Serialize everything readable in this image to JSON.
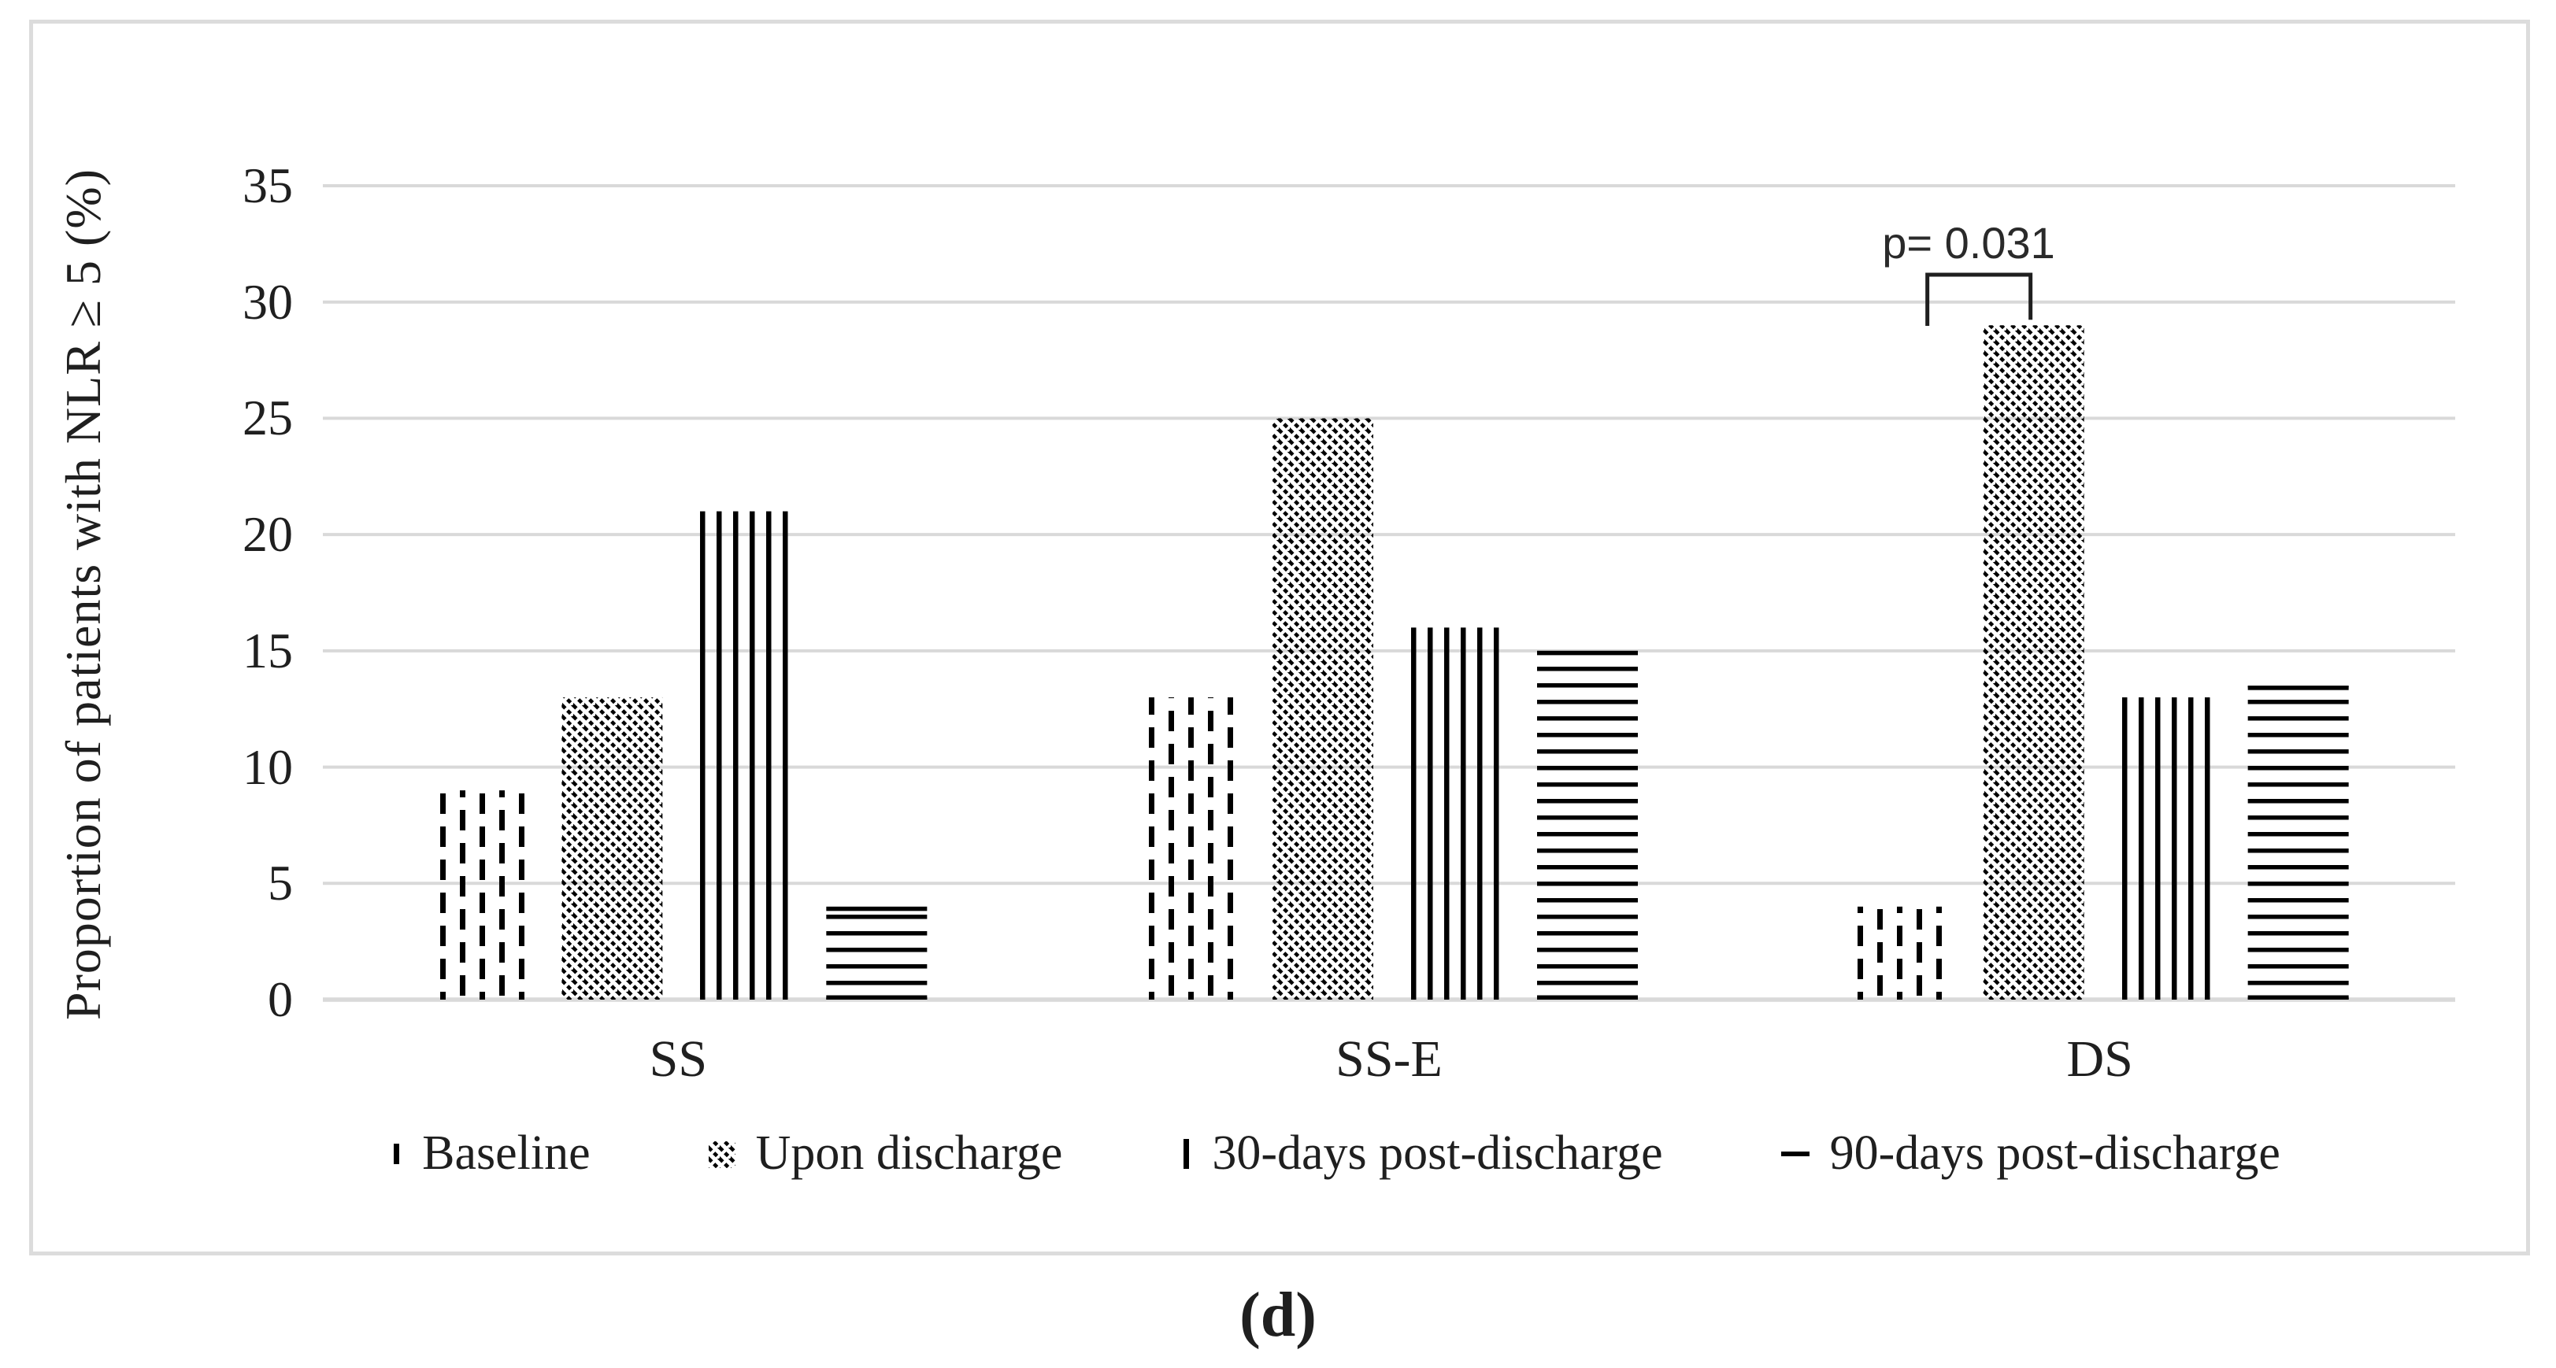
{
  "figure": {
    "caption": "(d)"
  },
  "colors": {
    "bar": "#000000",
    "gridline": "#d9d9d9",
    "panel_border": "#dcdcdc",
    "background": "#ffffff",
    "text": "#1f1f1f"
  },
  "chart_data": {
    "type": "bar",
    "title": "",
    "xlabel": "",
    "ylabel": "Proportion of patients with NLR ≥ 5 (%)",
    "ylim": [
      0,
      35
    ],
    "yticks": [
      0,
      5,
      10,
      15,
      20,
      25,
      30,
      35
    ],
    "grid": true,
    "legend_position": "bottom",
    "categories": [
      "SS",
      "SS-E",
      "DS"
    ],
    "series": [
      {
        "name": "Baseline",
        "pattern": "dashed-vertical",
        "values": [
          9,
          13,
          4
        ]
      },
      {
        "name": "Upon discharge",
        "pattern": "diagonal-hatch",
        "values": [
          13,
          25,
          29
        ]
      },
      {
        "name": "30-days post-discharge",
        "pattern": "vertical-lines",
        "values": [
          21,
          16,
          13
        ]
      },
      {
        "name": "90-days post-discharge",
        "pattern": "horizontal-lines",
        "values": [
          4,
          15,
          13.5
        ]
      }
    ],
    "annotation": {
      "text": "p= 0.031",
      "category": "DS",
      "between": [
        "Baseline",
        "Upon discharge"
      ]
    }
  }
}
